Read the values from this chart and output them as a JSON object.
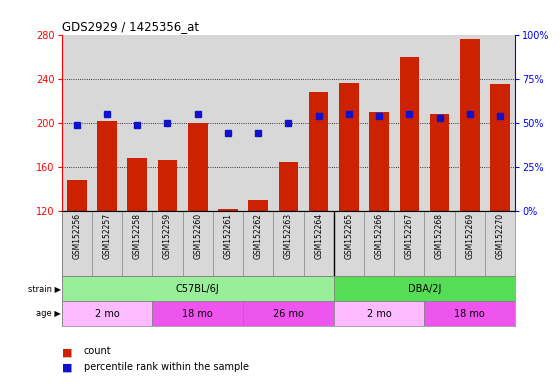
{
  "title": "GDS2929 / 1425356_at",
  "samples": [
    "GSM152256",
    "GSM152257",
    "GSM152258",
    "GSM152259",
    "GSM152260",
    "GSM152261",
    "GSM152262",
    "GSM152263",
    "GSM152264",
    "GSM152265",
    "GSM152266",
    "GSM152267",
    "GSM152268",
    "GSM152269",
    "GSM152270"
  ],
  "counts": [
    148,
    202,
    168,
    166,
    200,
    122,
    130,
    165,
    228,
    236,
    210,
    260,
    208,
    276,
    235
  ],
  "percentile_ranks": [
    49,
    55,
    49,
    50,
    55,
    44,
    44,
    50,
    54,
    55,
    54,
    55,
    53,
    55,
    54
  ],
  "ymin": 120,
  "ymax": 280,
  "left_yticks": [
    120,
    160,
    200,
    240,
    280
  ],
  "right_yticks": [
    0,
    25,
    50,
    75,
    100
  ],
  "bar_color": "#cc2200",
  "dot_color": "#1111cc",
  "strain_groups": [
    {
      "label": "C57BL/6J",
      "start": 0,
      "end": 9,
      "color": "#99ee99"
    },
    {
      "label": "DBA/2J",
      "start": 9,
      "end": 15,
      "color": "#55dd55"
    }
  ],
  "age_groups": [
    {
      "label": "2 mo",
      "start": 0,
      "end": 3,
      "color": "#ffbbff"
    },
    {
      "label": "18 mo",
      "start": 3,
      "end": 6,
      "color": "#ee55ee"
    },
    {
      "label": "26 mo",
      "start": 6,
      "end": 9,
      "color": "#ee55ee"
    },
    {
      "label": "2 mo",
      "start": 9,
      "end": 12,
      "color": "#ffbbff"
    },
    {
      "label": "18 mo",
      "start": 12,
      "end": 15,
      "color": "#ee55ee"
    }
  ],
  "legend_count": "count",
  "legend_pct": "percentile rank within the sample",
  "bg_color": "#ffffff",
  "plot_bg_color": "#d8d8d8",
  "grid_dotted_color": "#000000"
}
